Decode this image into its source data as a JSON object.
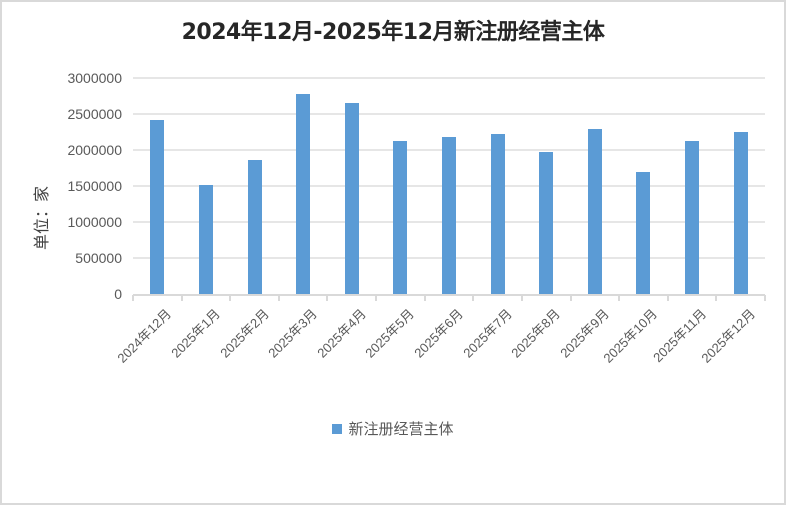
{
  "chart_data": {
    "type": "bar",
    "title": "2024年12月-2025年12月新注册经营主体",
    "xlabel": "",
    "ylabel": "单位：家",
    "ylim": [
      0,
      3000000
    ],
    "yticks": [
      "3000000",
      "2500000",
      "2000000",
      "1500000",
      "1000000",
      "500000",
      "0"
    ],
    "grid": true,
    "legend_position": "bottom",
    "categories": [
      "2024年12月",
      "2025年1月",
      "2025年2月",
      "2025年3月",
      "2025年4月",
      "2025年5月",
      "2025年6月",
      "2025年7月",
      "2025年8月",
      "2025年9月",
      "2025年10月",
      "2025年11月",
      "2025年12月"
    ],
    "series": [
      {
        "name": "新注册经营主体",
        "color": "#5b9bd5",
        "values": [
          2415000,
          1515000,
          1860000,
          2775000,
          2650000,
          2125000,
          2180000,
          2220000,
          1975000,
          2290000,
          1695000,
          2125000,
          2250000
        ]
      }
    ]
  }
}
